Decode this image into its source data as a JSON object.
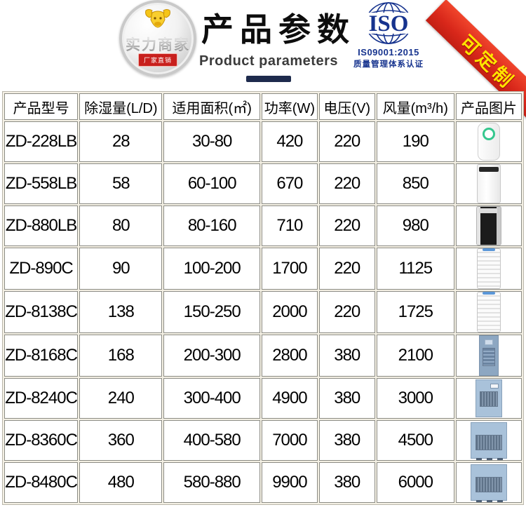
{
  "header": {
    "badge": {
      "brand_text": "实力商家",
      "banner_text": "厂家直销"
    },
    "title": "产品参数",
    "subtitle": "Product parameters",
    "iso": {
      "mark": "ISO",
      "line1": "IS09001:2015",
      "line2": "质量管理体系认证"
    },
    "ribbon_label": "可定制"
  },
  "colors": {
    "ribbon_red": "#d8271a",
    "ribbon_text_yellow": "#ffe400",
    "iso_blue": "#16338e",
    "underline_navy": "#1e2b4d",
    "table_gap_cream": "#f4f0e4",
    "cell_border_gray": "#8b8b84"
  },
  "table": {
    "columns": [
      {
        "key": "model",
        "label": "产品型号"
      },
      {
        "key": "capacity",
        "label": "除湿量(L/D)"
      },
      {
        "key": "area",
        "label": "适用面积(㎡)"
      },
      {
        "key": "power",
        "label": "功率(W)"
      },
      {
        "key": "voltage",
        "label": "电压(V)"
      },
      {
        "key": "airflow",
        "label": "风量(m³/h)"
      },
      {
        "key": "image",
        "label": "产品图片"
      }
    ],
    "rows": [
      {
        "model": "ZD-228LB",
        "capacity": "28",
        "area": "30-80",
        "power": "420",
        "voltage": "220",
        "airflow": "190",
        "image": "white-compact-green-ring"
      },
      {
        "model": "ZD-558LB",
        "capacity": "58",
        "area": "60-100",
        "power": "670",
        "voltage": "220",
        "airflow": "850",
        "image": "white-tower-dark-top"
      },
      {
        "model": "ZD-880LB",
        "capacity": "80",
        "area": "80-160",
        "power": "710",
        "voltage": "220",
        "airflow": "980",
        "image": "black-panel-tower"
      },
      {
        "model": "ZD-890C",
        "capacity": "90",
        "area": "100-200",
        "power": "1700",
        "voltage": "220",
        "airflow": "1125",
        "image": "white-louver-tower"
      },
      {
        "model": "ZD-8138C",
        "capacity": "138",
        "area": "150-250",
        "power": "2000",
        "voltage": "220",
        "airflow": "1725",
        "image": "white-louver-tower"
      },
      {
        "model": "ZD-8168C",
        "capacity": "168",
        "area": "200-300",
        "power": "2800",
        "voltage": "380",
        "airflow": "2100",
        "image": "blue-industrial-tower"
      },
      {
        "model": "ZD-8240C",
        "capacity": "240",
        "area": "300-400",
        "power": "4900",
        "voltage": "380",
        "airflow": "3000",
        "image": "blue-industrial-cabinet"
      },
      {
        "model": "ZD-8360C",
        "capacity": "360",
        "area": "400-580",
        "power": "7000",
        "voltage": "380",
        "airflow": "4500",
        "image": "blue-industrial-cabinet-wide"
      },
      {
        "model": "ZD-8480C",
        "capacity": "480",
        "area": "580-880",
        "power": "9900",
        "voltage": "380",
        "airflow": "6000",
        "image": "blue-industrial-cabinet-wide"
      }
    ]
  }
}
